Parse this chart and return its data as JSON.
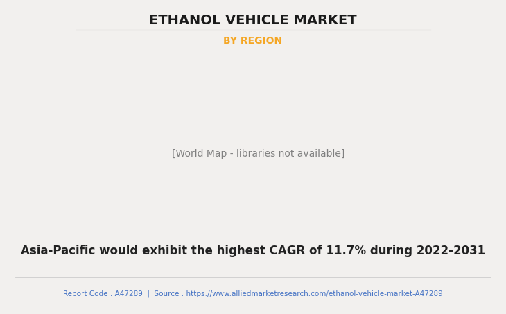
{
  "title": "ETHANOL VEHICLE MARKET",
  "subtitle": "BY REGION",
  "subtitle_color": "#F5A623",
  "main_text": "Asia-Pacific would exhibit the highest CAGR of 11.7% during 2022-2031",
  "footer_text": "Report Code : A47289  |  Source : https://www.alliedmarketresearch.com/ethanol-vehicle-market-A47289",
  "footer_color": "#4472C4",
  "background_color": "#F2F0EE",
  "map_land_color": "#8DBF8D",
  "map_border_color": "#90B8D8",
  "map_shadow_color": "#B0B0B0",
  "na_highlight_color": "#E8E8E8",
  "title_fontsize": 14,
  "subtitle_fontsize": 10,
  "main_text_fontsize": 12,
  "footer_fontsize": 7.5,
  "title_color": "#1a1a1a",
  "main_text_color": "#222222"
}
